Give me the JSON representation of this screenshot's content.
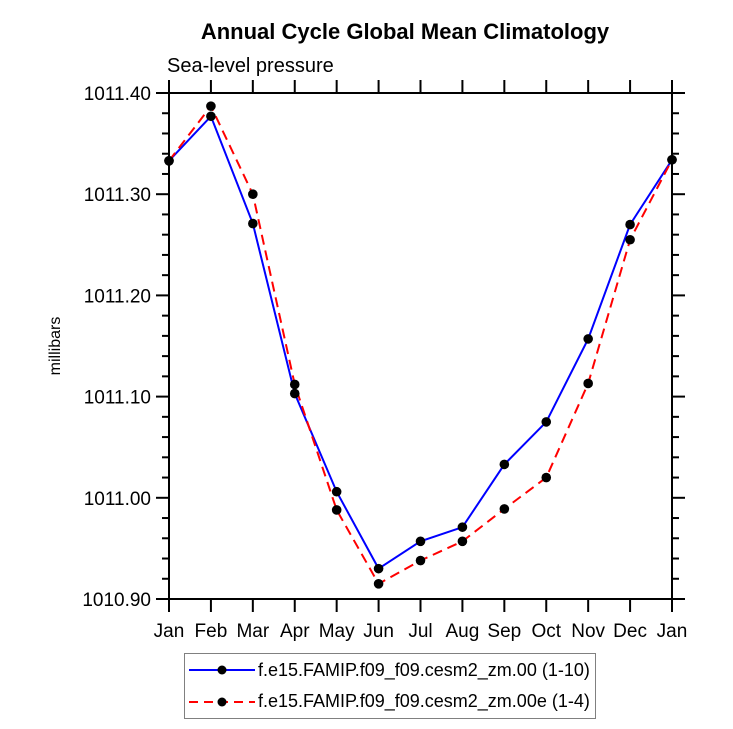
{
  "page": {
    "background": "#ffffff"
  },
  "legend": {
    "border_color": "#808080",
    "items": [
      {
        "label": "f.e15.FAMIP.f09_f09.cesm2_zm.00 (1-10)",
        "line_style": "solid",
        "line_color": "#0000ff",
        "marker_color": "#000000"
      },
      {
        "label": "f.e15.FAMIP.f09_f09.cesm2_zm.00e (1-4)",
        "line_style": "dashed",
        "line_color": "#ff0000",
        "marker_color": "#000000"
      }
    ]
  },
  "chart_data": {
    "type": "line",
    "title": "Annual Cycle Global Mean Climatology",
    "subtitle": "Sea-level pressure",
    "ylabel": "millibars",
    "xlabel": "",
    "categories": [
      "Jan",
      "Feb",
      "Mar",
      "Apr",
      "May",
      "Jun",
      "Jul",
      "Aug",
      "Sep",
      "Oct",
      "Nov",
      "Dec",
      "Jan"
    ],
    "series": [
      {
        "name": "f.e15.FAMIP.f09_f09.cesm2_zm.00 (1-10)",
        "color": "#0000ff",
        "line_style": "solid",
        "marker": "filled-circle",
        "marker_color": "#000000",
        "values": [
          1011.333,
          1011.377,
          1011.271,
          1011.103,
          1011.006,
          1010.93,
          1010.957,
          1010.971,
          1011.033,
          1011.075,
          1011.157,
          1011.27,
          1011.334
        ]
      },
      {
        "name": "f.e15.FAMIP.f09_f09.cesm2_zm.00e (1-4)",
        "color": "#ff0000",
        "line_style": "dashed",
        "marker": "filled-circle",
        "marker_color": "#000000",
        "values": [
          1011.333,
          1011.387,
          1011.3,
          1011.112,
          1010.988,
          1010.915,
          1010.938,
          1010.957,
          1010.989,
          1011.02,
          1011.113,
          1011.255,
          1011.334
        ]
      }
    ],
    "ylim": [
      1010.9,
      1011.4
    ],
    "ytick_step": 0.1,
    "yminor_step": 0.02,
    "ytick_labels": [
      "1011.40",
      "1011.30",
      "1011.20",
      "1011.10",
      "1011.00",
      "1010.90"
    ],
    "grid": false,
    "legend_position": "bottom-center",
    "axis_color": "#000000"
  }
}
